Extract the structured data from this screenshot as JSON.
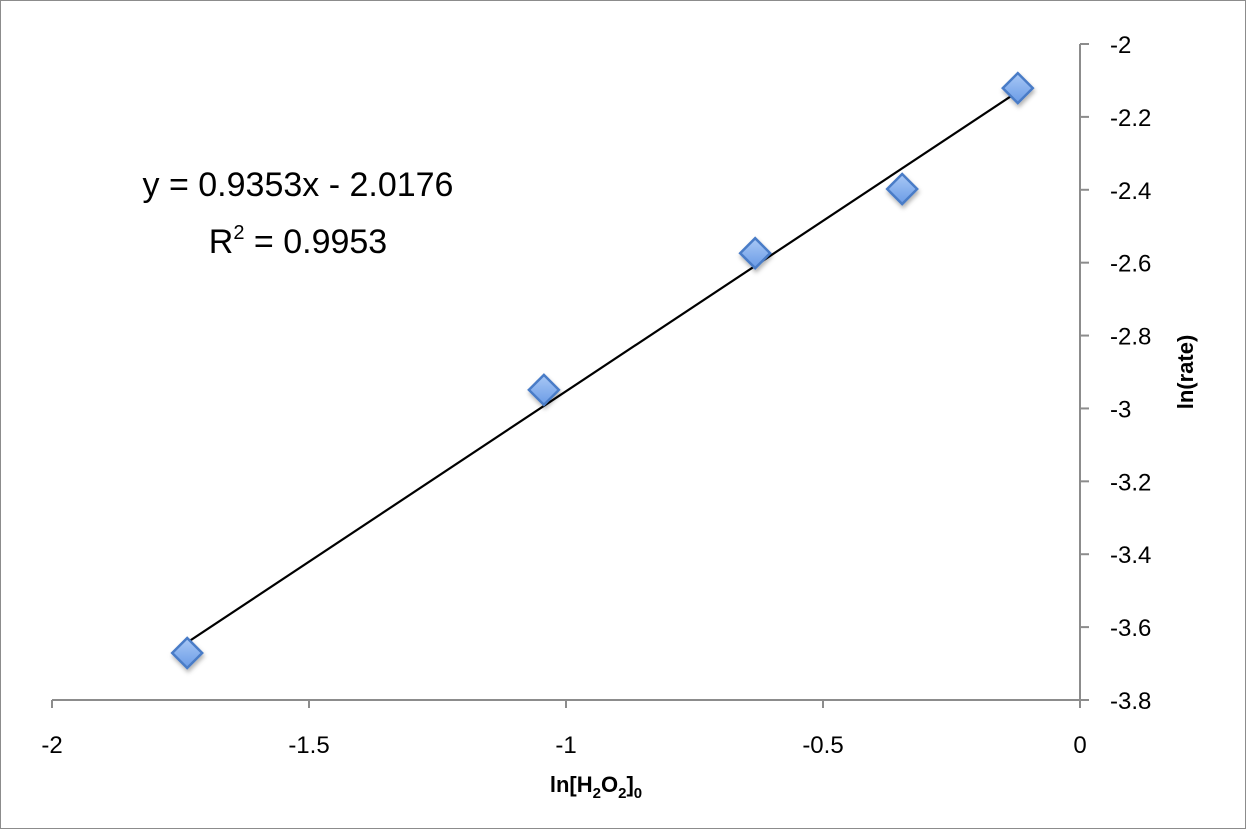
{
  "chart_data": {
    "type": "scatter",
    "title": "",
    "xlabel": "ln[H2O2]0",
    "xlabel_parts": {
      "main": "ln[H",
      "sub1": "2",
      "mid": "O",
      "sub2": "2",
      "end": "]",
      "sub3": "0"
    },
    "ylabel": "ln(rate)",
    "xlim": [
      -2,
      0
    ],
    "ylim": [
      -3.8,
      -2
    ],
    "x_ticks": [
      "-2",
      "-1.5",
      "-1",
      "-0.5",
      "0"
    ],
    "x_tick_values": [
      -2,
      -1.5,
      -1,
      -0.5,
      0
    ],
    "y_ticks": [
      "-2",
      "-2.2",
      "-2.4",
      "-2.6",
      "-2.8",
      "-3",
      "-3.2",
      "-3.4",
      "-3.6",
      "-3.8"
    ],
    "y_tick_values": [
      -2,
      -2.2,
      -2.4,
      -2.6,
      -2.8,
      -3,
      -3.2,
      -3.4,
      -3.6,
      -3.8
    ],
    "grid": false,
    "y_axis_position": "right",
    "series": [
      {
        "marker": "diamond",
        "color": "#6f9fe8",
        "points": [
          {
            "x": -1.737,
            "y": -3.671
          },
          {
            "x": -1.043,
            "y": -2.949
          },
          {
            "x": -0.632,
            "y": -2.574
          },
          {
            "x": -0.346,
            "y": -2.398
          },
          {
            "x": -0.121,
            "y": -2.121
          }
        ]
      }
    ],
    "trendline": {
      "type": "linear",
      "slope": 0.9353,
      "intercept": -2.0176,
      "x_range": [
        -1.737,
        -0.121
      ],
      "color": "#000000"
    },
    "annotations": {
      "equation": "y = 0.9353x - 2.0176",
      "r2_prefix": "R",
      "r2_sup": "2",
      "r2_rest": " = 0.9953"
    }
  }
}
